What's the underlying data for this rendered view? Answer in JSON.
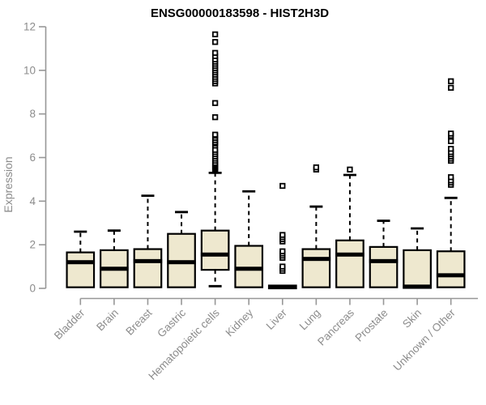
{
  "chart_data": {
    "type": "boxplot",
    "title": "ENSG00000183598 - HIST2H3D",
    "ylabel": "Expression",
    "xlabel": "",
    "ylim": [
      0,
      12
    ],
    "yticks": [
      0,
      2,
      4,
      6,
      8,
      10,
      12
    ],
    "grid": false,
    "legend": "none",
    "colors": {
      "box_fill": "#EEE8CF",
      "box_border": "#000000",
      "median": "#000000",
      "whisker": "#000000",
      "outlier_fill": "#ffffff",
      "outlier_border": "#000000",
      "axis": "#979797",
      "tick_label": "#8c8c8c",
      "title": "#000000"
    },
    "categories": [
      "Bladder",
      "Brain",
      "Breast",
      "Gastric",
      "Hematopoietic cells",
      "Kidney",
      "Liver",
      "Lung",
      "Pancreas",
      "Prostate",
      "Skin",
      "Unknown / Other"
    ],
    "boxes": [
      {
        "category": "Bladder",
        "low": 0,
        "q1": 0.05,
        "median": 1.2,
        "q3": 1.65,
        "high": 2.6,
        "outliers": []
      },
      {
        "category": "Brain",
        "low": 0,
        "q1": 0.05,
        "median": 0.9,
        "q3": 1.75,
        "high": 2.65,
        "outliers": []
      },
      {
        "category": "Breast",
        "low": 0,
        "q1": 0.05,
        "median": 1.25,
        "q3": 1.8,
        "high": 4.25,
        "outliers": []
      },
      {
        "category": "Gastric",
        "low": 0,
        "q1": 0.05,
        "median": 1.2,
        "q3": 2.5,
        "high": 3.5,
        "outliers": []
      },
      {
        "category": "Hematopoietic cells",
        "low": 0.1,
        "q1": 0.85,
        "median": 1.55,
        "q3": 2.65,
        "high": 5.3,
        "outliers": [
          5.4,
          5.45,
          5.5,
          5.55,
          5.6,
          5.65,
          5.7,
          5.75,
          5.85,
          5.95,
          6.05,
          6.15,
          6.25,
          6.35,
          6.55,
          6.65,
          6.7,
          6.8,
          6.9,
          7.0,
          7.05,
          7.85,
          8.5,
          9.4,
          9.5,
          9.6,
          9.7,
          9.8,
          9.9,
          10.0,
          10.1,
          10.2,
          10.3,
          10.4,
          10.5,
          10.65,
          10.8,
          11.3,
          11.65
        ]
      },
      {
        "category": "Kidney",
        "low": 0,
        "q1": 0.05,
        "median": 0.9,
        "q3": 1.95,
        "high": 4.45,
        "outliers": []
      },
      {
        "category": "Liver",
        "low": 0,
        "q1": 0.0,
        "median": 0.06,
        "q3": 0.13,
        "high": 0.15,
        "outliers": [
          0.8,
          0.9,
          1.0,
          1.4,
          1.5,
          1.6,
          1.7,
          2.15,
          2.25,
          2.35,
          2.45,
          4.7
        ]
      },
      {
        "category": "Lung",
        "low": 0,
        "q1": 0.05,
        "median": 1.35,
        "q3": 1.8,
        "high": 3.75,
        "outliers": [
          5.45,
          5.55
        ]
      },
      {
        "category": "Pancreas",
        "low": 0,
        "q1": 0.05,
        "median": 1.55,
        "q3": 2.2,
        "high": 5.2,
        "outliers": [
          5.45
        ]
      },
      {
        "category": "Prostate",
        "low": 0,
        "q1": 0.05,
        "median": 1.25,
        "q3": 1.9,
        "high": 3.1,
        "outliers": []
      },
      {
        "category": "Skin",
        "low": 0,
        "q1": 0.02,
        "median": 0.08,
        "q3": 1.75,
        "high": 2.75,
        "outliers": []
      },
      {
        "category": "Unknown / Other",
        "low": 0,
        "q1": 0.05,
        "median": 0.6,
        "q3": 1.7,
        "high": 4.15,
        "outliers": [
          4.75,
          4.85,
          4.95,
          5.1,
          5.85,
          5.95,
          6.05,
          6.15,
          6.25,
          6.4,
          6.75,
          7.0,
          7.1,
          9.2,
          9.5
        ]
      }
    ]
  }
}
